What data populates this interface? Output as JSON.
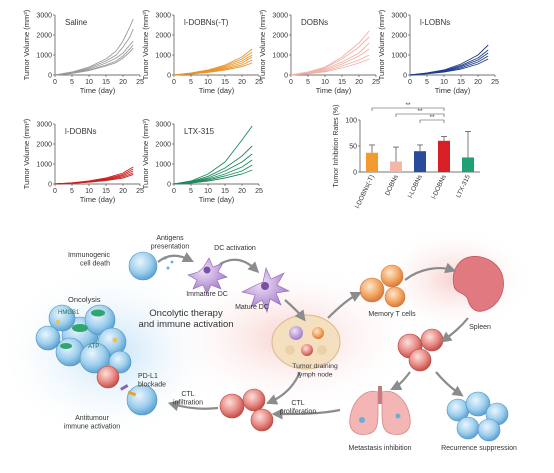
{
  "chart_data": [
    {
      "type": "line",
      "panel_label": "Saline",
      "color": "#9a9a9a",
      "xlabel": "Time (day)",
      "ylabel": "Tumor Volume (mm³)",
      "xlim": [
        0,
        25
      ],
      "ylim": [
        0,
        3000
      ],
      "xticks": [
        "0",
        "5",
        "10",
        "15",
        "20",
        "25"
      ],
      "yticks": [
        "0",
        "1000",
        "2000",
        "3000"
      ],
      "series": [
        {
          "x": [
            0,
            5,
            10,
            15,
            18,
            20,
            22,
            23
          ],
          "y": [
            0,
            150,
            400,
            800,
            1200,
            1700,
            2400,
            2800
          ]
        },
        {
          "x": [
            0,
            5,
            10,
            15,
            18,
            20,
            22,
            23
          ],
          "y": [
            0,
            120,
            350,
            700,
            1000,
            1400,
            1900,
            2300
          ]
        },
        {
          "x": [
            0,
            5,
            10,
            15,
            18,
            20,
            22,
            23
          ],
          "y": [
            0,
            100,
            300,
            600,
            850,
            1100,
            1500,
            1700
          ]
        },
        {
          "x": [
            0,
            5,
            10,
            15,
            18,
            20,
            22,
            23
          ],
          "y": [
            0,
            90,
            250,
            500,
            700,
            950,
            1300,
            1500
          ]
        },
        {
          "x": [
            0,
            5,
            10,
            15,
            18,
            20,
            22,
            23
          ],
          "y": [
            0,
            80,
            220,
            450,
            620,
            850,
            1150,
            1350
          ]
        }
      ]
    },
    {
      "type": "line",
      "panel_label": "l-DOBNs(-T)",
      "color": "#e8952a",
      "xlabel": "Time (day)",
      "ylabel": "Tumor Volume (mm³)",
      "xlim": [
        0,
        25
      ],
      "ylim": [
        0,
        3000
      ],
      "xticks": [
        "0",
        "5",
        "10",
        "15",
        "20",
        "25"
      ],
      "yticks": [
        "0",
        "1000",
        "2000",
        "3000"
      ],
      "series": [
        {
          "x": [
            0,
            5,
            10,
            15,
            20,
            23
          ],
          "y": [
            0,
            100,
            250,
            500,
            900,
            1300
          ]
        },
        {
          "x": [
            0,
            5,
            10,
            15,
            20,
            23
          ],
          "y": [
            0,
            90,
            220,
            450,
            800,
            1150
          ]
        },
        {
          "x": [
            0,
            5,
            10,
            15,
            20,
            23
          ],
          "y": [
            0,
            80,
            200,
            400,
            700,
            1000
          ]
        },
        {
          "x": [
            0,
            5,
            10,
            15,
            20,
            23
          ],
          "y": [
            0,
            70,
            180,
            350,
            600,
            900
          ]
        },
        {
          "x": [
            0,
            5,
            10,
            15,
            20,
            23
          ],
          "y": [
            0,
            60,
            150,
            300,
            500,
            750
          ]
        },
        {
          "x": [
            0,
            5,
            10,
            15,
            20,
            23
          ],
          "y": [
            0,
            50,
            130,
            250,
            420,
            600
          ]
        }
      ]
    },
    {
      "type": "line",
      "panel_label": "DOBNs",
      "color": "#f0b0a8",
      "xlabel": "Time (day)",
      "ylabel": "Tumor Volume (mm³)",
      "xlim": [
        0,
        25
      ],
      "ylim": [
        0,
        3000
      ],
      "xticks": [
        "0",
        "5",
        "10",
        "15",
        "20",
        "25"
      ],
      "yticks": [
        "0",
        "1000",
        "2000",
        "3000"
      ],
      "series": [
        {
          "x": [
            0,
            5,
            10,
            15,
            20,
            23
          ],
          "y": [
            0,
            150,
            400,
            900,
            1600,
            2200
          ]
        },
        {
          "x": [
            0,
            5,
            10,
            15,
            20,
            23
          ],
          "y": [
            0,
            130,
            350,
            800,
            1400,
            1900
          ]
        },
        {
          "x": [
            0,
            5,
            10,
            15,
            20,
            23
          ],
          "y": [
            0,
            110,
            300,
            650,
            1100,
            1600
          ]
        },
        {
          "x": [
            0,
            5,
            10,
            15,
            20,
            23
          ],
          "y": [
            0,
            100,
            250,
            550,
            950,
            1300
          ]
        },
        {
          "x": [
            0,
            5,
            10,
            15,
            20,
            23
          ],
          "y": [
            0,
            80,
            200,
            450,
            750,
            1000
          ]
        },
        {
          "x": [
            0,
            5,
            10,
            15,
            20,
            23
          ],
          "y": [
            0,
            60,
            160,
            350,
            600,
            800
          ]
        }
      ]
    },
    {
      "type": "line",
      "panel_label": "l-LOBNs",
      "color": "#1f3d8c",
      "xlabel": "Time (day)",
      "ylabel": "Tumor Volume (mm³)",
      "xlim": [
        0,
        25
      ],
      "ylim": [
        0,
        3000
      ],
      "xticks": [
        "0",
        "5",
        "10",
        "15",
        "20",
        "25"
      ],
      "yticks": [
        "0",
        "1000",
        "2000",
        "3000"
      ],
      "series": [
        {
          "x": [
            0,
            5,
            10,
            15,
            20,
            23
          ],
          "y": [
            0,
            100,
            250,
            550,
            1000,
            1500
          ]
        },
        {
          "x": [
            0,
            5,
            10,
            15,
            20,
            23
          ],
          "y": [
            0,
            90,
            220,
            480,
            850,
            1250
          ]
        },
        {
          "x": [
            0,
            5,
            10,
            15,
            20,
            23
          ],
          "y": [
            0,
            80,
            200,
            420,
            750,
            1100
          ]
        },
        {
          "x": [
            0,
            5,
            10,
            15,
            20,
            23
          ],
          "y": [
            0,
            70,
            170,
            360,
            650,
            950
          ]
        },
        {
          "x": [
            0,
            5,
            10,
            15,
            20,
            23
          ],
          "y": [
            0,
            60,
            150,
            300,
            550,
            800
          ]
        }
      ]
    },
    {
      "type": "line",
      "panel_label": "l-DOBNs",
      "color": "#cc1f1f",
      "xlabel": "Time (day)",
      "ylabel": "Tumor Volume (mm³)",
      "xlim": [
        0,
        25
      ],
      "ylim": [
        0,
        3000
      ],
      "xticks": [
        "0",
        "5",
        "10",
        "15",
        "20",
        "25"
      ],
      "yticks": [
        "0",
        "1000",
        "2000",
        "3000"
      ],
      "series": [
        {
          "x": [
            0,
            5,
            10,
            15,
            20,
            23
          ],
          "y": [
            0,
            60,
            150,
            300,
            550,
            850
          ]
        },
        {
          "x": [
            0,
            5,
            10,
            15,
            20,
            23
          ],
          "y": [
            0,
            50,
            130,
            260,
            480,
            750
          ]
        },
        {
          "x": [
            0,
            5,
            10,
            15,
            20,
            23
          ],
          "y": [
            0,
            45,
            120,
            230,
            420,
            650
          ]
        },
        {
          "x": [
            0,
            5,
            10,
            15,
            20,
            23
          ],
          "y": [
            0,
            40,
            100,
            200,
            360,
            550
          ]
        },
        {
          "x": [
            0,
            5,
            10,
            15,
            20,
            23
          ],
          "y": [
            0,
            35,
            90,
            170,
            300,
            480
          ]
        }
      ]
    },
    {
      "type": "line",
      "panel_label": "LTX-315",
      "color": "#1e8a5e",
      "xlabel": "Time (day)",
      "ylabel": "Tumor Volume (mm³)",
      "xlim": [
        0,
        25
      ],
      "ylim": [
        0,
        3000
      ],
      "xticks": [
        "0",
        "5",
        "10",
        "15",
        "20",
        "25"
      ],
      "yticks": [
        "0",
        "1000",
        "2000",
        "3000"
      ],
      "series": [
        {
          "x": [
            0,
            5,
            10,
            15,
            20,
            23
          ],
          "y": [
            0,
            150,
            500,
            1100,
            2200,
            2900
          ]
        },
        {
          "x": [
            0,
            5,
            10,
            15,
            20,
            23
          ],
          "y": [
            0,
            120,
            380,
            800,
            1400,
            1900
          ]
        },
        {
          "x": [
            0,
            5,
            10,
            15,
            20,
            23
          ],
          "y": [
            0,
            100,
            300,
            650,
            1100,
            1500
          ]
        },
        {
          "x": [
            0,
            5,
            10,
            15,
            20,
            23
          ],
          "y": [
            0,
            80,
            250,
            500,
            850,
            1200
          ]
        },
        {
          "x": [
            0,
            5,
            10,
            15,
            20,
            23
          ],
          "y": [
            0,
            60,
            200,
            400,
            650,
            950
          ]
        },
        {
          "x": [
            0,
            5,
            10,
            15,
            20,
            23
          ],
          "y": [
            0,
            50,
            150,
            300,
            500,
            700
          ]
        }
      ]
    },
    {
      "type": "bar",
      "ylabel": "Tumor Inhibition Rates (%)",
      "ylim": [
        0,
        100
      ],
      "yticks": [
        "0",
        "50",
        "100"
      ],
      "categories": [
        "l-DOBNs(-T)",
        "DOBNs",
        "l-LOBNs",
        "l-DOBNs",
        "LTX-315"
      ],
      "values": [
        37,
        20,
        40,
        60,
        28
      ],
      "errors": [
        15,
        28,
        12,
        8,
        50
      ],
      "colors": [
        "#f29a2e",
        "#f5b5a8",
        "#2a4a9c",
        "#d91f26",
        "#21a074"
      ],
      "significance": [
        "**",
        "**",
        "**"
      ]
    }
  ],
  "diagram": {
    "labels": {
      "antigens": "Antigens\npresentation",
      "dc_activation": "DC activation",
      "immunogenic": "Immunogenic\ncell death",
      "immature_dc": "Immature DC",
      "mature_dc": "Mature DC",
      "memory_t": "Memory T cells",
      "spleen": "Spleen",
      "oncolysis": "Oncolysis",
      "hmgb1": "HMGB1",
      "atp": "ATP",
      "center": "Oncolytic therapy\nand immune activation",
      "lymph": "Tumor draining\nlymph node",
      "pdl1": "PD-L1\nblockade",
      "ctl_infiltration": "CTL\ninfiltration",
      "ctl_proliferation": "CTL\nproliferation",
      "antitumour": "Antitumour\nimmune activation",
      "metastasis": "Metastasis inhibition",
      "recurrence": "Recurrence suppression"
    }
  }
}
